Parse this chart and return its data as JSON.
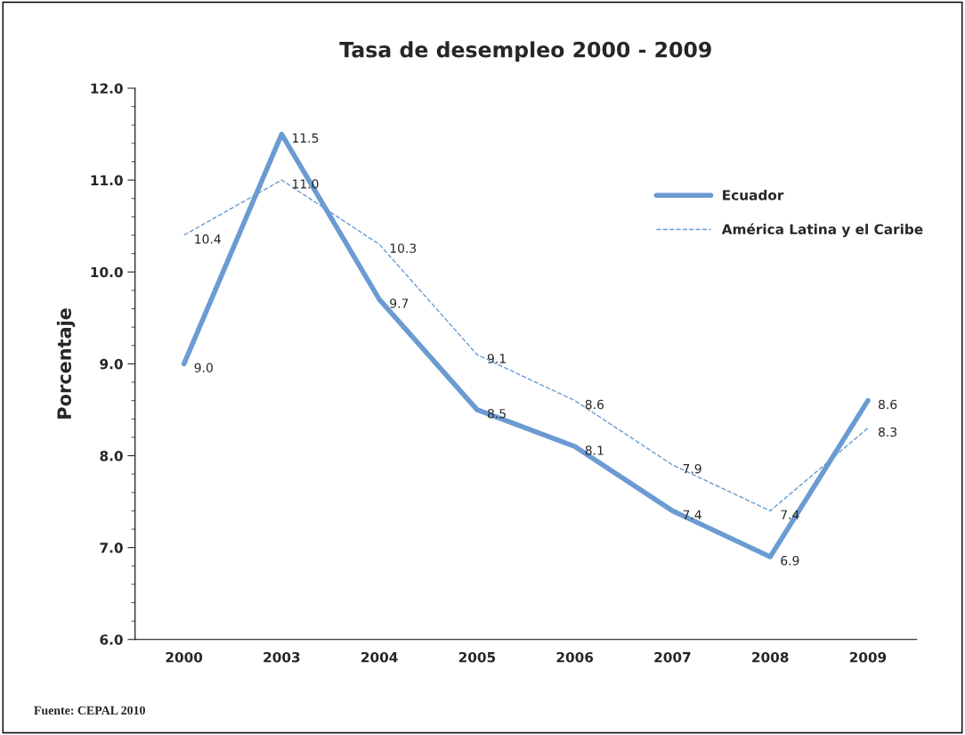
{
  "chart_data": {
    "type": "line",
    "title": "Tasa de desempleo 2000 - 2009",
    "ylabel": "Porcentaje",
    "categories": [
      "2000",
      "2003",
      "2004",
      "2005",
      "2006",
      "2007",
      "2008",
      "2009"
    ],
    "series": [
      {
        "name": "Ecuador",
        "color": "#6b9bd1",
        "line_style": "solid",
        "values": [
          9.0,
          11.5,
          9.7,
          8.5,
          8.1,
          7.4,
          6.9,
          8.6
        ],
        "value_labels": [
          "9.0",
          "11.5",
          "9.7",
          "8.5",
          "8.1",
          "7.4",
          "6.9",
          "8.6"
        ]
      },
      {
        "name": "América Latina y el Caribe",
        "color": "#6b9bd1",
        "line_style": "dashed",
        "values": [
          10.4,
          11.0,
          10.3,
          9.1,
          8.6,
          7.9,
          7.4,
          8.3
        ],
        "value_labels": [
          "10.4",
          "11.0",
          "10.3",
          "9.1",
          "8.6",
          "7.9",
          "7.4",
          "8.3"
        ]
      }
    ],
    "ylim": [
      6,
      12
    ],
    "yticks": [
      {
        "value": 6,
        "label": "6.0"
      },
      {
        "value": 7,
        "label": "7.0"
      },
      {
        "value": 8,
        "label": "8.0"
      },
      {
        "value": 9,
        "label": "9.0"
      },
      {
        "value": 10,
        "label": "10.0"
      },
      {
        "value": 11,
        "label": "11.0"
      },
      {
        "value": 12,
        "label": "12.0"
      }
    ],
    "grid": false,
    "legend": "top right",
    "marker": "none",
    "annotations": [
      "Fuente: CEPAL 2010"
    ]
  }
}
